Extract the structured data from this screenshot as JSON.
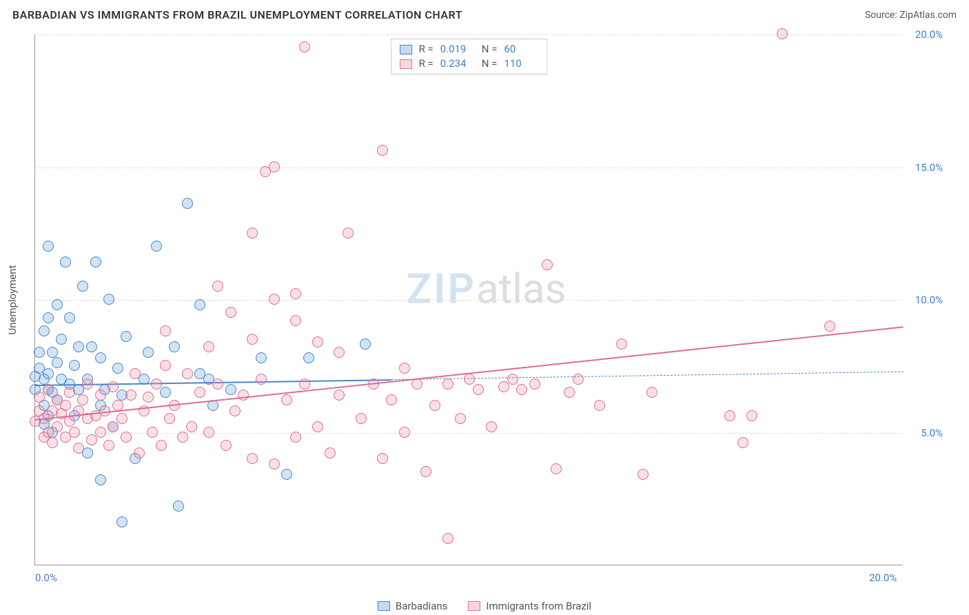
{
  "header": {
    "title": "BARBADIAN VS IMMIGRANTS FROM BRAZIL UNEMPLOYMENT CORRELATION CHART",
    "source": "Source: ZipAtlas.com"
  },
  "watermark": {
    "part1": "ZIP",
    "part2": "atlas"
  },
  "chart": {
    "type": "scatter",
    "xlim": [
      0,
      20
    ],
    "ylim": [
      0,
      20
    ],
    "x_ticks": [
      {
        "v": 0,
        "label": "0.0%"
      },
      {
        "v": 20,
        "label": "20.0%"
      }
    ],
    "y_ticks": [
      {
        "v": 5,
        "label": "5.0%"
      },
      {
        "v": 10,
        "label": "10.0%"
      },
      {
        "v": 15,
        "label": "15.0%"
      },
      {
        "v": 20,
        "label": "20.0%"
      }
    ],
    "y_axis_title": "Unemployment",
    "grid_color": "#dddddd",
    "axis_color": "#999999",
    "background_color": "#ffffff",
    "tick_label_color": "#3a7fcf",
    "marker_radius": 8,
    "marker_border_width": 1.2,
    "marker_fill_opacity": 0.28,
    "series": [
      {
        "key": "barbadians",
        "label": "Barbadians",
        "color": "#5a99d8",
        "border_color": "#4a86c5",
        "R": "0.019",
        "N": "60",
        "trend": {
          "x1": 0,
          "y1": 6.8,
          "x2": 20,
          "y2": 7.3,
          "solid_until_x": 8.2
        },
        "points": [
          [
            0.0,
            6.6
          ],
          [
            0.0,
            7.1
          ],
          [
            0.1,
            8.0
          ],
          [
            0.1,
            7.4
          ],
          [
            0.2,
            6.0
          ],
          [
            0.2,
            8.8
          ],
          [
            0.2,
            7.0
          ],
          [
            0.2,
            5.3
          ],
          [
            0.3,
            9.3
          ],
          [
            0.3,
            6.6
          ],
          [
            0.3,
            12.0
          ],
          [
            0.3,
            7.2
          ],
          [
            0.3,
            5.6
          ],
          [
            0.4,
            8.0
          ],
          [
            0.4,
            6.5
          ],
          [
            0.4,
            5.0
          ],
          [
            0.5,
            9.8
          ],
          [
            0.5,
            7.6
          ],
          [
            0.5,
            6.2
          ],
          [
            0.6,
            8.5
          ],
          [
            0.6,
            7.0
          ],
          [
            0.7,
            11.4
          ],
          [
            0.8,
            6.8
          ],
          [
            0.8,
            9.3
          ],
          [
            0.9,
            7.5
          ],
          [
            0.9,
            5.6
          ],
          [
            1.0,
            8.2
          ],
          [
            1.0,
            6.6
          ],
          [
            1.1,
            10.5
          ],
          [
            1.2,
            7.0
          ],
          [
            1.2,
            4.2
          ],
          [
            1.3,
            8.2
          ],
          [
            1.4,
            11.4
          ],
          [
            1.5,
            6.0
          ],
          [
            1.5,
            7.8
          ],
          [
            1.6,
            6.6
          ],
          [
            1.7,
            10.0
          ],
          [
            1.8,
            5.2
          ],
          [
            1.5,
            3.2
          ],
          [
            1.9,
            7.4
          ],
          [
            2.0,
            1.6
          ],
          [
            2.0,
            6.4
          ],
          [
            2.1,
            8.6
          ],
          [
            2.3,
            4.0
          ],
          [
            2.5,
            7.0
          ],
          [
            2.6,
            8.0
          ],
          [
            2.8,
            12.0
          ],
          [
            3.0,
            6.5
          ],
          [
            3.2,
            8.2
          ],
          [
            3.3,
            2.2
          ],
          [
            3.5,
            13.6
          ],
          [
            3.8,
            7.2
          ],
          [
            3.8,
            9.8
          ],
          [
            4.0,
            7.0
          ],
          [
            4.1,
            6.0
          ],
          [
            4.5,
            6.6
          ],
          [
            5.2,
            7.8
          ],
          [
            5.8,
            3.4
          ],
          [
            6.3,
            7.8
          ],
          [
            7.6,
            8.3
          ]
        ]
      },
      {
        "key": "brazil",
        "label": "Immigrants from Brazil",
        "color": "#e98fa8",
        "border_color": "#e06c8d",
        "R": "0.234",
        "N": "110",
        "trend": {
          "x1": 0,
          "y1": 5.5,
          "x2": 20,
          "y2": 9.0,
          "solid_until_x": 20
        },
        "points": [
          [
            0.0,
            5.4
          ],
          [
            0.1,
            5.8
          ],
          [
            0.1,
            6.3
          ],
          [
            0.2,
            4.8
          ],
          [
            0.2,
            5.5
          ],
          [
            0.3,
            6.6
          ],
          [
            0.3,
            5.0
          ],
          [
            0.4,
            5.8
          ],
          [
            0.4,
            4.6
          ],
          [
            0.5,
            6.2
          ],
          [
            0.5,
            5.2
          ],
          [
            0.6,
            5.7
          ],
          [
            0.7,
            6.0
          ],
          [
            0.7,
            4.8
          ],
          [
            0.8,
            5.4
          ],
          [
            0.8,
            6.5
          ],
          [
            0.9,
            5.0
          ],
          [
            1.0,
            5.8
          ],
          [
            1.0,
            4.4
          ],
          [
            1.1,
            6.2
          ],
          [
            1.2,
            5.5
          ],
          [
            1.2,
            6.8
          ],
          [
            1.3,
            4.7
          ],
          [
            1.4,
            5.6
          ],
          [
            1.5,
            6.4
          ],
          [
            1.5,
            5.0
          ],
          [
            1.6,
            5.8
          ],
          [
            1.7,
            4.5
          ],
          [
            1.8,
            6.7
          ],
          [
            1.8,
            5.2
          ],
          [
            1.9,
            6.0
          ],
          [
            2.0,
            5.5
          ],
          [
            2.1,
            4.8
          ],
          [
            2.2,
            6.4
          ],
          [
            2.3,
            7.2
          ],
          [
            2.4,
            4.2
          ],
          [
            2.5,
            5.8
          ],
          [
            2.6,
            6.3
          ],
          [
            2.7,
            5.0
          ],
          [
            2.8,
            6.8
          ],
          [
            2.9,
            4.5
          ],
          [
            3.0,
            7.5
          ],
          [
            3.1,
            5.5
          ],
          [
            3.2,
            6.0
          ],
          [
            3.4,
            4.8
          ],
          [
            3.5,
            7.2
          ],
          [
            3.6,
            5.2
          ],
          [
            3.8,
            6.5
          ],
          [
            4.0,
            8.2
          ],
          [
            4.0,
            5.0
          ],
          [
            4.2,
            6.8
          ],
          [
            4.4,
            4.5
          ],
          [
            4.5,
            9.5
          ],
          [
            4.6,
            5.8
          ],
          [
            4.8,
            6.4
          ],
          [
            5.0,
            8.5
          ],
          [
            5.0,
            4.0
          ],
          [
            5.2,
            7.0
          ],
          [
            5.3,
            14.8
          ],
          [
            5.5,
            10.0
          ],
          [
            5.5,
            3.8
          ],
          [
            5.8,
            6.2
          ],
          [
            6.0,
            4.8
          ],
          [
            6.0,
            9.2
          ],
          [
            6.2,
            6.8
          ],
          [
            6.2,
            19.5
          ],
          [
            6.5,
            5.2
          ],
          [
            6.5,
            8.4
          ],
          [
            6.8,
            4.2
          ],
          [
            7.0,
            8.0
          ],
          [
            7.0,
            6.4
          ],
          [
            7.2,
            12.5
          ],
          [
            7.5,
            5.5
          ],
          [
            7.8,
            6.8
          ],
          [
            8.0,
            4.0
          ],
          [
            8.0,
            15.6
          ],
          [
            8.2,
            6.2
          ],
          [
            8.5,
            7.4
          ],
          [
            8.5,
            5.0
          ],
          [
            8.8,
            6.8
          ],
          [
            9.0,
            3.5
          ],
          [
            9.2,
            6.0
          ],
          [
            9.5,
            6.8
          ],
          [
            9.5,
            1.0
          ],
          [
            9.8,
            5.5
          ],
          [
            10.0,
            7.0
          ],
          [
            10.2,
            6.6
          ],
          [
            10.5,
            5.2
          ],
          [
            10.8,
            6.7
          ],
          [
            11.0,
            7.0
          ],
          [
            11.2,
            6.6
          ],
          [
            11.5,
            6.8
          ],
          [
            11.8,
            11.3
          ],
          [
            12.0,
            3.6
          ],
          [
            12.3,
            6.5
          ],
          [
            12.5,
            7.0
          ],
          [
            13.0,
            6.0
          ],
          [
            13.5,
            8.3
          ],
          [
            14.0,
            3.4
          ],
          [
            14.2,
            6.5
          ],
          [
            16.0,
            5.6
          ],
          [
            16.3,
            4.6
          ],
          [
            16.5,
            5.6
          ],
          [
            17.2,
            20.0
          ],
          [
            18.3,
            9.0
          ],
          [
            5.0,
            12.5
          ],
          [
            5.5,
            15.0
          ],
          [
            6.0,
            10.2
          ],
          [
            4.2,
            10.5
          ],
          [
            3.0,
            8.8
          ]
        ]
      }
    ],
    "stats_legend": {
      "R_label": "R =",
      "N_label": "N ="
    },
    "bottom_legend_labels": [
      "Barbadians",
      "Immigrants from Brazil"
    ]
  }
}
